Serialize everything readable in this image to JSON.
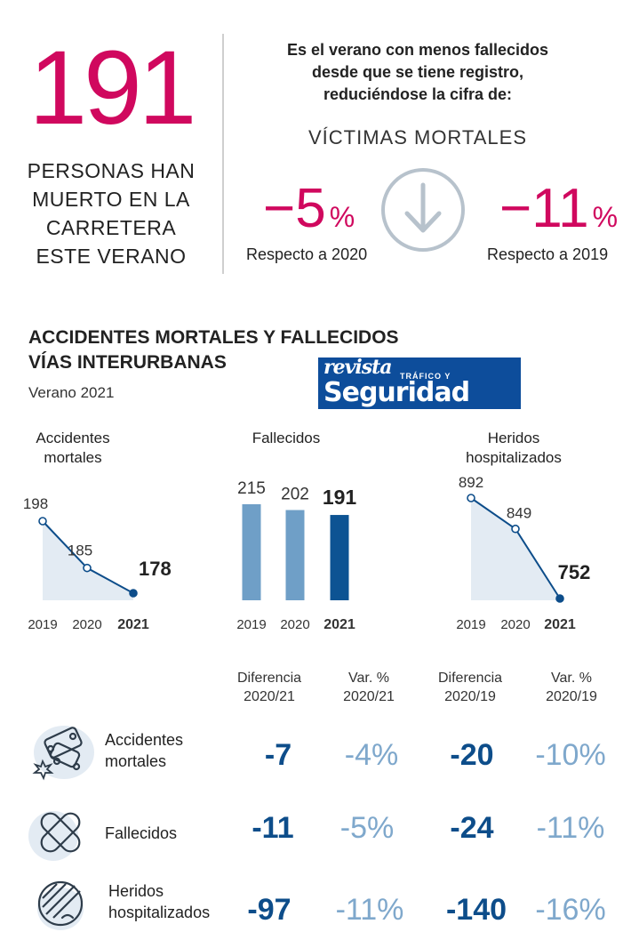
{
  "summary": {
    "total": "191",
    "caption_lines": [
      "PERSONAS HAN",
      "MUERTO EN LA",
      "CARRETERA",
      "ESTE VERANO"
    ],
    "headline_lines": [
      "Es el verano con menos fallecidos",
      "desde que se tiene registro,",
      "reduciéndose la cifra de:"
    ],
    "victimas_label": "VÍCTIMAS MORTALES",
    "change_2020": {
      "value": "−5",
      "unit": "%",
      "label": "Respecto a 2020"
    },
    "change_2019": {
      "value": "−11",
      "unit": "%",
      "label": "Respecto a 2019"
    },
    "arrow_icon": "arrow-down-circle-icon"
  },
  "section": {
    "title_lines": [
      "ACCIDENTES MORTALES Y FALLECIDOS",
      "VÍAS INTERURBANAS"
    ],
    "subtitle": "Verano 2021"
  },
  "logo": {
    "line1": "revista",
    "line1b": "TRÁFICO Y",
    "line2": "Seguridad Vial"
  },
  "colors": {
    "accent": "#d0085e",
    "dark_blue": "#0d4d8a",
    "mid_blue": "#6f9fc7",
    "light_blue": "#7fa8cc",
    "area_fill": "#e3ebf3"
  },
  "chart_data": [
    {
      "type": "area",
      "title_lines": [
        "Accidentes",
        "mortales"
      ],
      "x": [
        "2019",
        "2020",
        "2021"
      ],
      "values": [
        198,
        185,
        178
      ],
      "labels": [
        "198",
        "185",
        "178"
      ]
    },
    {
      "type": "bar",
      "title_lines": [
        "Fallecidos"
      ],
      "categories": [
        "2019",
        "2020",
        "2021"
      ],
      "values": [
        215,
        202,
        191
      ],
      "labels": [
        "215",
        "202",
        "191"
      ]
    },
    {
      "type": "area",
      "title_lines": [
        "Heridos",
        "hospitalizados"
      ],
      "x": [
        "2019",
        "2020",
        "2021"
      ],
      "values": [
        892,
        849,
        752
      ],
      "labels": [
        "892",
        "849",
        "752"
      ]
    }
  ],
  "table": {
    "columns": [
      [
        "Diferencia",
        "2020/21"
      ],
      [
        "Var. %",
        "2020/21"
      ],
      [
        "Diferencia",
        "2020/19"
      ],
      [
        "Var. %",
        "2020/19"
      ]
    ],
    "rows": [
      {
        "icon": "car-crash-icon",
        "label_lines": [
          "Accidentes",
          "mortales"
        ],
        "values": [
          "-7",
          "-4%",
          "-20",
          "-10%"
        ]
      },
      {
        "icon": "bandage-icon",
        "label_lines": [
          "Fallecidos"
        ],
        "values": [
          "-11",
          "-5%",
          "-24",
          "-11%"
        ]
      },
      {
        "icon": "injured-face-icon",
        "label_lines": [
          "Heridos",
          "hospitalizados"
        ],
        "values": [
          "-97",
          "-11%",
          "-140",
          "-16%"
        ]
      }
    ]
  }
}
